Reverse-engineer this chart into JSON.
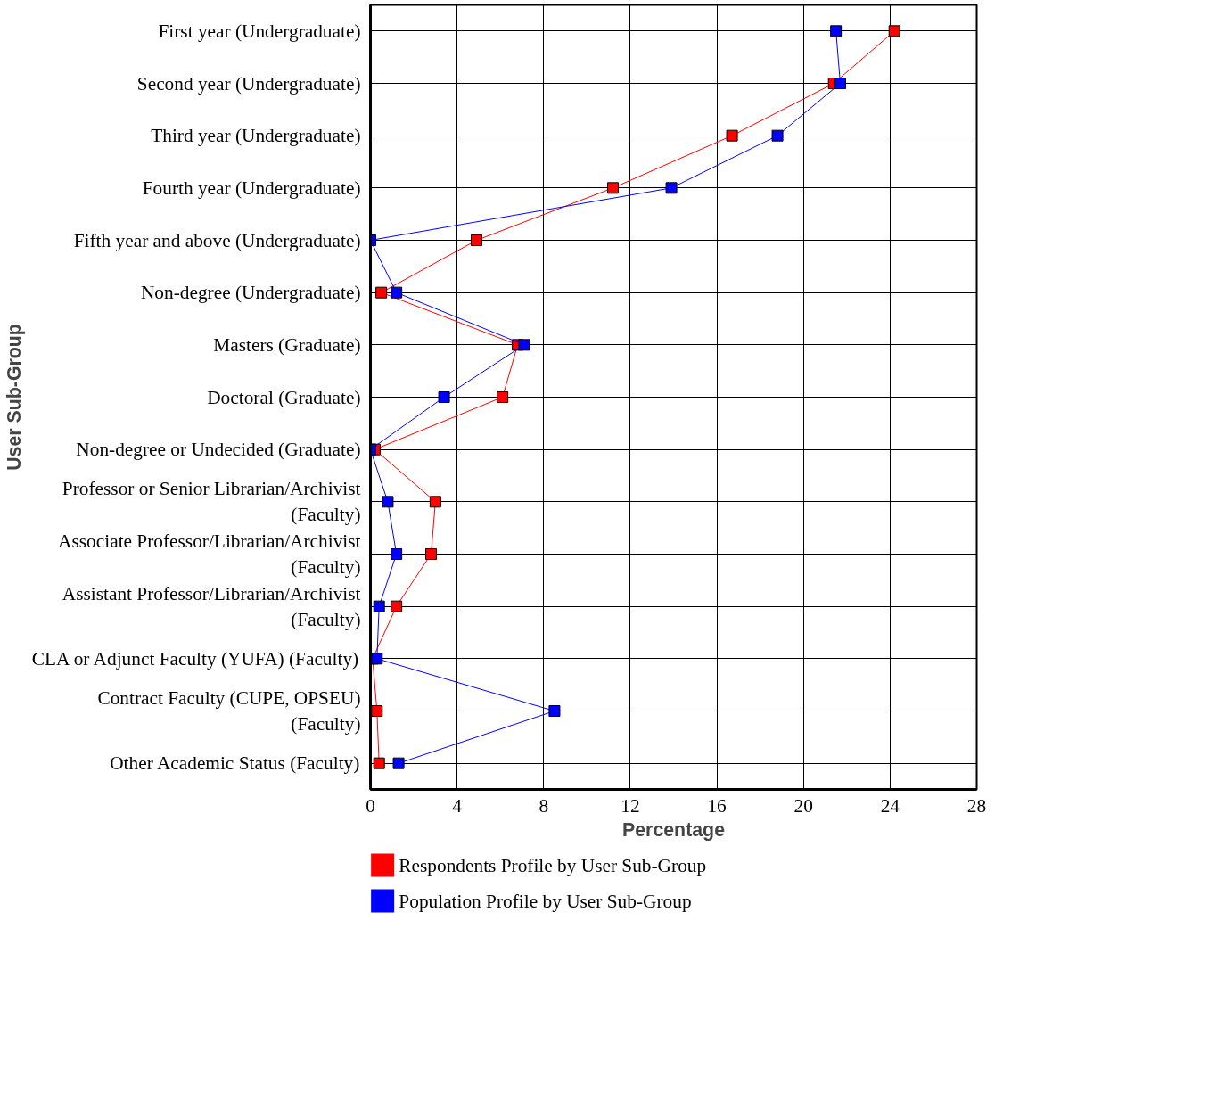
{
  "chart_data": {
    "type": "line",
    "orientation": "horizontal",
    "xlabel": "Percentage",
    "ylabel": "User Sub-Group",
    "categories": [
      "First year (Undergraduate)",
      "Second year (Undergraduate)",
      "Third year (Undergraduate)",
      "Fourth year (Undergraduate)",
      "Fifth year and above (Undergraduate)",
      "Non-degree (Undergraduate)",
      "Masters (Graduate)",
      "Doctoral (Graduate)",
      "Non-degree or Undecided (Graduate)",
      "Professor or Senior Librarian/Archivist (Faculty)",
      "Associate Professor/Librarian/Archivist (Faculty)",
      "Assistant Professor/Librarian/Archivist (Faculty)",
      "CLA or Adjunct Faculty (YUFA) (Faculty)",
      "Contract Faculty (CUPE, OPSEU) (Faculty)",
      "Other Academic Status (Faculty)"
    ],
    "series": [
      {
        "name": "Respondents Profile by User Sub-Group",
        "color": "#ff0000",
        "values": [
          24.2,
          21.4,
          16.7,
          11.2,
          4.9,
          0.5,
          6.8,
          6.1,
          0.2,
          3.0,
          2.8,
          1.2,
          0.1,
          0.3,
          0.4
        ]
      },
      {
        "name": "Population Profile by User Sub-Group",
        "color": "#0000ff",
        "values": [
          21.5,
          21.7,
          18.8,
          13.9,
          0,
          1.2,
          7.1,
          3.4,
          0,
          0.8,
          1.2,
          0.4,
          0.3,
          8.5,
          1.3
        ]
      }
    ],
    "xlim": [
      0,
      28
    ],
    "xticks": [
      0,
      4,
      8,
      12,
      16,
      20,
      24,
      28
    ],
    "grid": true,
    "legend": "bottom",
    "marker": "square",
    "line_style": "solid"
  }
}
